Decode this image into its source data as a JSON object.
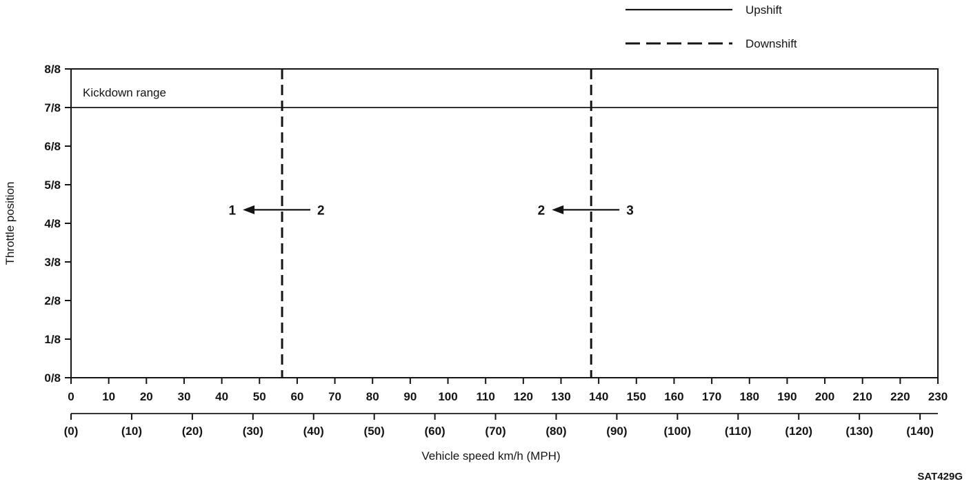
{
  "footer": {
    "figure_code": "SAT429G"
  },
  "chart_data": {
    "type": "line",
    "xlabel": "Vehicle speed km/h (MPH)",
    "ylabel": "Throttle position",
    "legend_position": "top-right",
    "grid": false,
    "legend": [
      {
        "label": "Upshift",
        "line_style": "solid"
      },
      {
        "label": "Downshift",
        "line_style": "dashed"
      }
    ],
    "x_axis_kmh": {
      "min": 0,
      "max": 230,
      "ticks": [
        0,
        10,
        20,
        30,
        40,
        50,
        60,
        70,
        80,
        90,
        100,
        110,
        120,
        130,
        140,
        150,
        160,
        170,
        180,
        190,
        200,
        210,
        220,
        230
      ]
    },
    "x_axis_mph": {
      "min": 0,
      "max": 140,
      "kmh_per_mph": 1.609,
      "tick_values": [
        0,
        10,
        20,
        30,
        40,
        50,
        60,
        70,
        80,
        90,
        100,
        110,
        120,
        130,
        140
      ],
      "tick_labels": [
        "(0)",
        "(10)",
        "(20)",
        "(30)",
        "(40)",
        "(50)",
        "(60)",
        "(70)",
        "(80)",
        "(90)",
        "(100)",
        "(110)",
        "(120)",
        "(130)",
        "(140)"
      ]
    },
    "y_axis": {
      "min": 0,
      "max": 8,
      "tick_labels": [
        "0/8",
        "1/8",
        "2/8",
        "3/8",
        "4/8",
        "5/8",
        "6/8",
        "7/8",
        "8/8"
      ]
    },
    "kickdown": {
      "label": "Kickdown range",
      "boundary_eighths": 7
    },
    "shift_lines": [
      {
        "kind": "downshift",
        "from_gear": "2",
        "to_gear": "1",
        "speed_kmh": 56,
        "arrow_throttle_eighths": 4.35
      },
      {
        "kind": "downshift",
        "from_gear": "3",
        "to_gear": "2",
        "speed_kmh": 138,
        "arrow_throttle_eighths": 4.35
      }
    ]
  }
}
